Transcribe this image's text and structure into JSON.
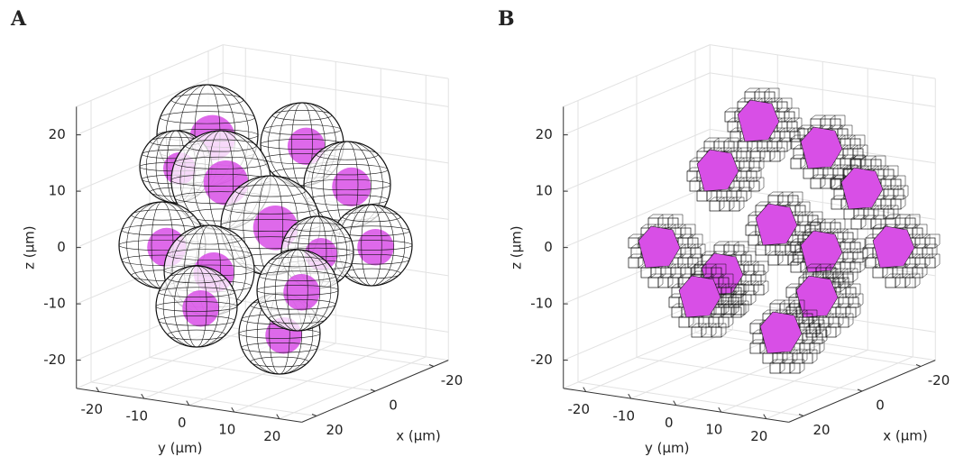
{
  "chart_data": [
    {
      "type": "3d",
      "label": "A",
      "xlabel": "x (μm)",
      "ylabel": "y (μm)",
      "zlabel": "z (μm)",
      "xlim": [
        -25,
        25
      ],
      "ylim": [
        -25,
        25
      ],
      "zlim": [
        -25,
        25
      ],
      "xticks": [
        -20,
        0,
        20
      ],
      "yticks": [
        -20,
        -10,
        0,
        10,
        20
      ],
      "zticks": [
        -20,
        -10,
        0,
        10,
        20
      ],
      "grid": true,
      "style": "spheres"
    },
    {
      "type": "3d",
      "label": "B",
      "xlabel": "x (μm)",
      "ylabel": "y (μm)",
      "zlabel": "z (μm)",
      "xlim": [
        -25,
        25
      ],
      "ylim": [
        -25,
        25
      ],
      "zlim": [
        -25,
        25
      ],
      "xticks": [
        -20,
        0,
        20
      ],
      "yticks": [
        -20,
        -10,
        0,
        10,
        20
      ],
      "zticks": [
        -20,
        -10,
        0,
        10,
        20
      ],
      "grid": true,
      "style": "voxels"
    }
  ]
}
